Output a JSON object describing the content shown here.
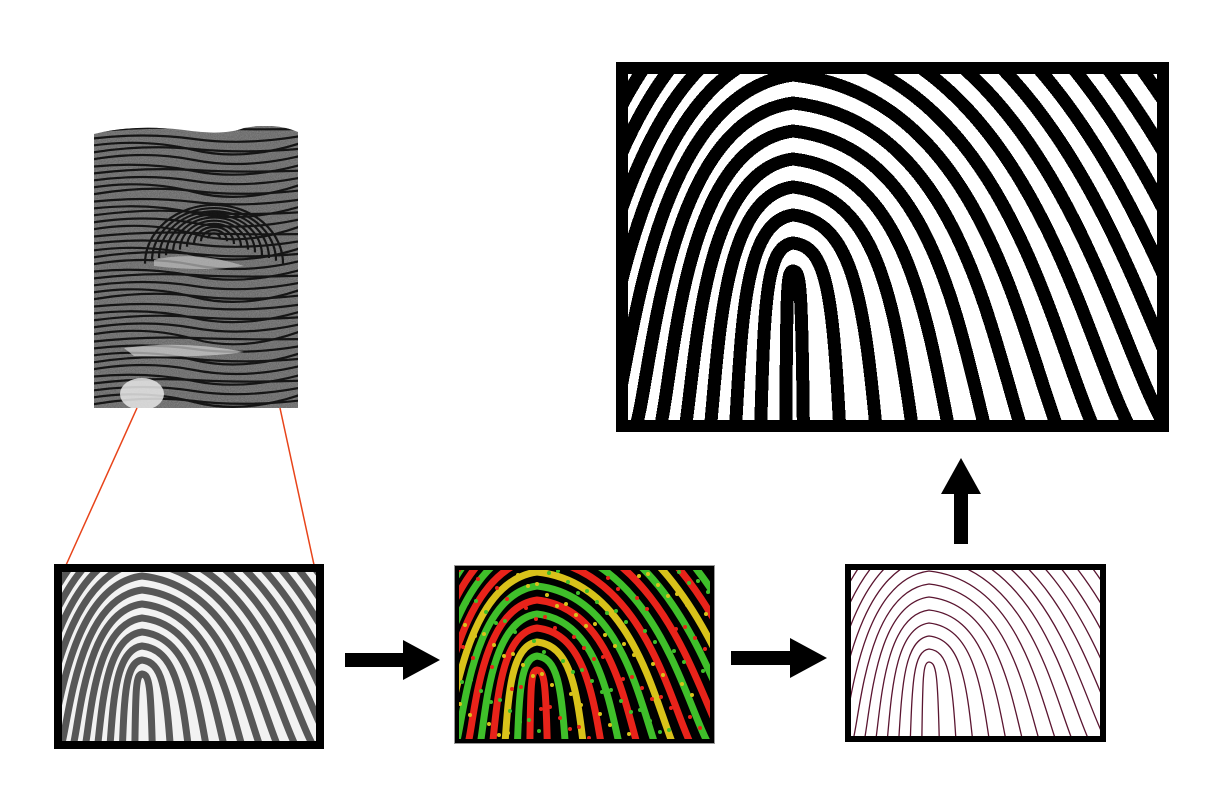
{
  "diagram": {
    "description_nodes": [
      {
        "id": "source-print",
        "kind": "grayscale fingerprint impression"
      },
      {
        "id": "cropped-region",
        "kind": "zoomed grayscale crop"
      },
      {
        "id": "enhanced-region",
        "kind": "color-coded ridge enhancement"
      },
      {
        "id": "thinned-region",
        "kind": "thinned ridge skeleton"
      },
      {
        "id": "binarized-region",
        "kind": "binarized ridge pattern"
      }
    ],
    "edges": [
      {
        "from": "source-print",
        "to": "cropped-region",
        "style": "zoom-lines"
      },
      {
        "from": "cropped-region",
        "to": "enhanced-region",
        "style": "arrow-right"
      },
      {
        "from": "enhanced-region",
        "to": "thinned-region",
        "style": "arrow-right"
      },
      {
        "from": "thinned-region",
        "to": "binarized-region",
        "style": "arrow-up"
      }
    ],
    "colors": {
      "zoom_line": "#e8441a",
      "frame": "#000000",
      "enhance_red": "#e8231a",
      "enhance_green": "#3fbf2a",
      "enhance_yellow": "#d9c21a",
      "skeleton": "#5a1530"
    }
  }
}
